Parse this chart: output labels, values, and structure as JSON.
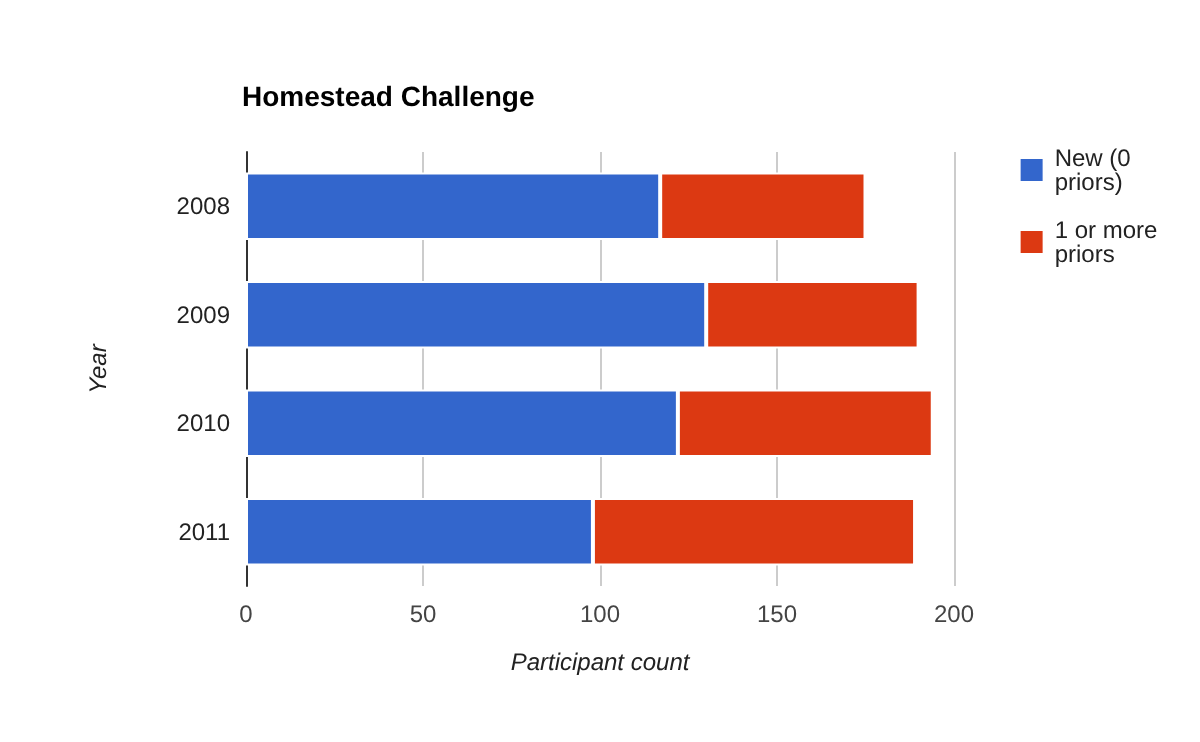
{
  "chart_data": {
    "type": "bar",
    "orientation": "horizontal",
    "stacked": true,
    "title": "Homestead Challenge",
    "xlabel": "Participant count",
    "ylabel": "Year",
    "categories": [
      "2008",
      "2009",
      "2010",
      "2011"
    ],
    "series": [
      {
        "name": "New (0 priors)",
        "color": "#3366cc",
        "values": [
          117,
          130,
          122,
          98
        ]
      },
      {
        "name": "1 or more priors",
        "color": "#dc3912",
        "values": [
          58,
          60,
          72,
          91
        ]
      }
    ],
    "xlim": [
      0,
      200
    ],
    "xticks": [
      0,
      50,
      100,
      150,
      200
    ],
    "grid": "x",
    "legend": "right"
  }
}
